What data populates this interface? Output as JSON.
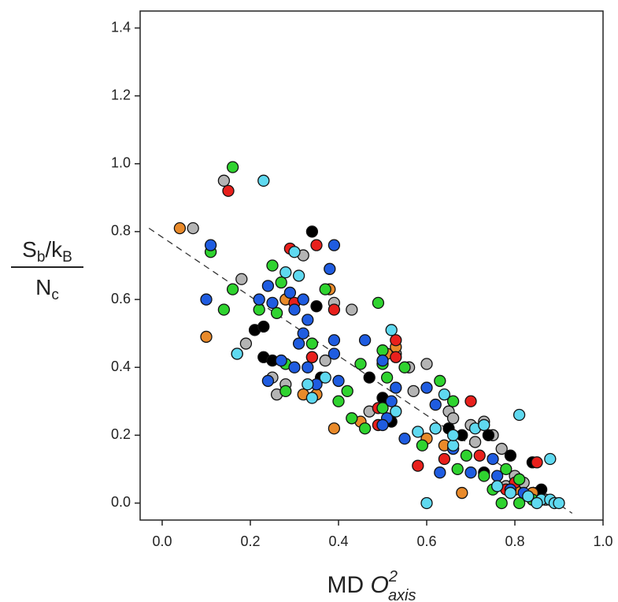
{
  "chart_data": {
    "type": "scatter",
    "ylabel_numerator": [
      "S",
      "b",
      "/k",
      "B"
    ],
    "ylabel_denominator": [
      "N",
      "c"
    ],
    "xlabel": [
      "MD ",
      "O",
      "2",
      "axis"
    ],
    "xlim": [
      -0.05,
      1.0
    ],
    "ylim": [
      -0.05,
      1.45
    ],
    "xticks": [
      {
        "value": 0,
        "label": "0.0"
      },
      {
        "value": 0.2,
        "label": "0.2"
      },
      {
        "value": 0.4,
        "label": "0.4"
      },
      {
        "value": 0.6,
        "label": "0.6"
      },
      {
        "value": 0.8,
        "label": "0.8"
      },
      {
        "value": 1.0,
        "label": "1.0"
      }
    ],
    "yticks": [
      {
        "value": 0,
        "label": "0.0"
      },
      {
        "value": 0.2,
        "label": "0.2"
      },
      {
        "value": 0.4,
        "label": "0.4"
      },
      {
        "value": 0.6,
        "label": "0.6"
      },
      {
        "value": 0.8,
        "label": "0.8"
      },
      {
        "value": 1.0,
        "label": "1.0"
      },
      {
        "value": 1.2,
        "label": "1.2"
      },
      {
        "value": 1.4,
        "label": "1.4"
      }
    ],
    "fit_line": {
      "x": [
        -0.03,
        0.93
      ],
      "y": [
        0.81,
        -0.03
      ]
    },
    "series": [
      {
        "color": "#b4b4b4",
        "x": [
          0.14,
          0.07,
          0.18,
          0.32,
          0.39,
          0.43,
          0.17,
          0.19,
          0.26,
          0.28,
          0.37,
          0.53,
          0.56,
          0.57,
          0.6,
          0.65,
          0.66,
          0.7,
          0.73,
          0.75,
          0.77,
          0.78,
          0.8,
          0.82,
          0.85,
          0.87,
          0.71,
          0.62,
          0.25,
          0.47
        ],
        "values": [
          0.95,
          0.81,
          0.66,
          0.73,
          0.59,
          0.57,
          0.44,
          0.47,
          0.32,
          0.35,
          0.42,
          0.44,
          0.4,
          0.33,
          0.41,
          0.27,
          0.25,
          0.23,
          0.24,
          0.2,
          0.16,
          0.05,
          0.08,
          0.06,
          0.03,
          0.01,
          0.18,
          0.22,
          0.37,
          0.27
        ]
      },
      {
        "color": "#000000",
        "x": [
          0.34,
          0.21,
          0.23,
          0.23,
          0.25,
          0.34,
          0.36,
          0.47,
          0.5,
          0.52,
          0.65,
          0.68,
          0.74,
          0.79,
          0.73,
          0.84,
          0.86,
          0.35
        ],
        "values": [
          0.8,
          0.51,
          0.52,
          0.43,
          0.42,
          0.43,
          0.37,
          0.37,
          0.31,
          0.24,
          0.22,
          0.2,
          0.2,
          0.14,
          0.09,
          0.12,
          0.04,
          0.58
        ]
      },
      {
        "color": "#e98a2a",
        "x": [
          0.04,
          0.1,
          0.28,
          0.38,
          0.32,
          0.39,
          0.45,
          0.53,
          0.51,
          0.6,
          0.64,
          0.68,
          0.8,
          0.84,
          0.35
        ],
        "values": [
          0.81,
          0.49,
          0.6,
          0.63,
          0.32,
          0.22,
          0.24,
          0.46,
          0.44,
          0.19,
          0.17,
          0.03,
          0.04,
          0.03,
          0.32
        ]
      },
      {
        "color": "#e8201c",
        "x": [
          0.15,
          0.35,
          0.29,
          0.3,
          0.39,
          0.53,
          0.53,
          0.49,
          0.49,
          0.58,
          0.7,
          0.64,
          0.72,
          0.78,
          0.8,
          0.85,
          0.34
        ],
        "values": [
          0.92,
          0.76,
          0.75,
          0.59,
          0.57,
          0.48,
          0.43,
          0.28,
          0.23,
          0.11,
          0.3,
          0.13,
          0.14,
          0.04,
          0.06,
          0.12,
          0.43
        ]
      },
      {
        "color": "#2fd32f",
        "x": [
          0.16,
          0.11,
          0.16,
          0.14,
          0.22,
          0.25,
          0.27,
          0.26,
          0.34,
          0.37,
          0.28,
          0.28,
          0.4,
          0.42,
          0.43,
          0.45,
          0.49,
          0.5,
          0.51,
          0.5,
          0.55,
          0.46,
          0.5,
          0.59,
          0.63,
          0.66,
          0.69,
          0.67,
          0.73,
          0.77,
          0.78,
          0.81,
          0.81,
          0.84,
          0.75
        ],
        "values": [
          0.99,
          0.74,
          0.63,
          0.57,
          0.57,
          0.7,
          0.65,
          0.56,
          0.47,
          0.63,
          0.41,
          0.33,
          0.3,
          0.33,
          0.25,
          0.41,
          0.59,
          0.45,
          0.37,
          0.41,
          0.4,
          0.22,
          0.28,
          0.17,
          0.36,
          0.3,
          0.14,
          0.1,
          0.08,
          0.0,
          0.1,
          0.07,
          0.0,
          0.01,
          0.04
        ]
      },
      {
        "color": "#1f5ce0",
        "x": [
          0.11,
          0.1,
          0.22,
          0.24,
          0.25,
          0.29,
          0.3,
          0.32,
          0.33,
          0.31,
          0.32,
          0.27,
          0.24,
          0.3,
          0.35,
          0.39,
          0.39,
          0.38,
          0.39,
          0.4,
          0.46,
          0.5,
          0.52,
          0.51,
          0.53,
          0.55,
          0.5,
          0.6,
          0.62,
          0.63,
          0.66,
          0.7,
          0.75,
          0.76,
          0.79,
          0.82,
          0.33
        ],
        "values": [
          0.76,
          0.6,
          0.6,
          0.64,
          0.59,
          0.62,
          0.57,
          0.6,
          0.54,
          0.47,
          0.5,
          0.42,
          0.36,
          0.4,
          0.35,
          0.48,
          0.44,
          0.69,
          0.76,
          0.36,
          0.48,
          0.42,
          0.3,
          0.25,
          0.34,
          0.19,
          0.23,
          0.34,
          0.29,
          0.09,
          0.16,
          0.09,
          0.13,
          0.08,
          0.04,
          0.03,
          0.4
        ]
      },
      {
        "color": "#5fd9f0",
        "x": [
          0.23,
          0.3,
          0.31,
          0.28,
          0.17,
          0.34,
          0.37,
          0.33,
          0.52,
          0.53,
          0.58,
          0.62,
          0.64,
          0.66,
          0.71,
          0.73,
          0.6,
          0.81,
          0.88,
          0.76,
          0.79,
          0.83,
          0.86,
          0.88,
          0.89,
          0.9,
          0.66,
          0.85
        ],
        "values": [
          0.95,
          0.74,
          0.67,
          0.68,
          0.44,
          0.31,
          0.37,
          0.35,
          0.51,
          0.27,
          0.21,
          0.22,
          0.32,
          0.17,
          0.22,
          0.23,
          0.0,
          0.26,
          0.13,
          0.05,
          0.03,
          0.02,
          0.01,
          0.01,
          0.0,
          0.0,
          0.2,
          0.0
        ]
      }
    ]
  }
}
